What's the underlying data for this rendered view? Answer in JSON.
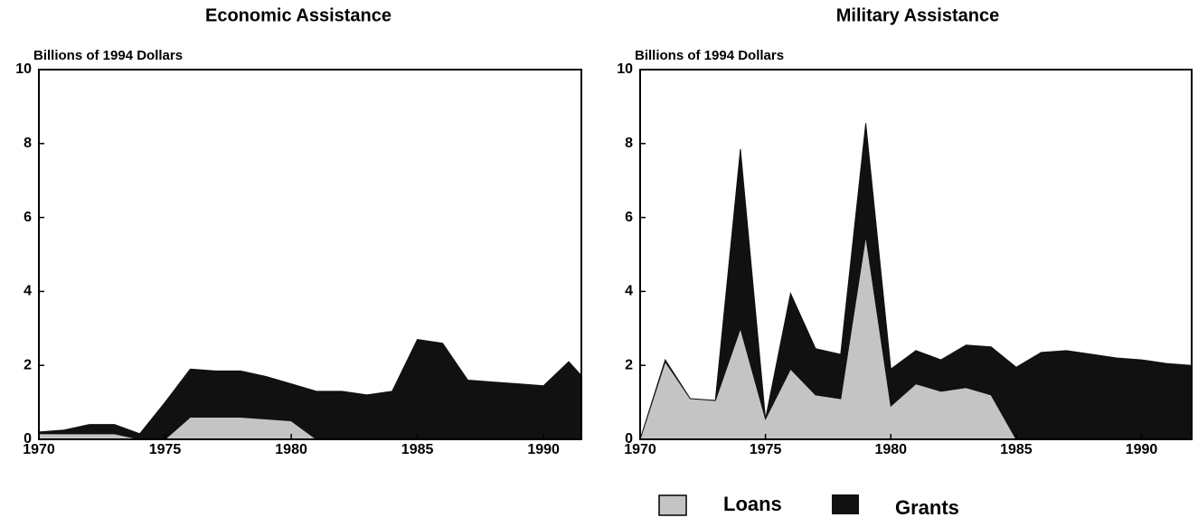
{
  "chart_data": [
    {
      "type": "stacked_area",
      "title": "Economic Assistance",
      "ylabel": "Billions of 1994 Dollars",
      "x": [
        1970,
        1971,
        1972,
        1973,
        1974,
        1975,
        1976,
        1977,
        1978,
        1979,
        1980,
        1981,
        1982,
        1983,
        1984,
        1985,
        1986,
        1987,
        1988,
        1989,
        1990,
        1991,
        1992
      ],
      "series": [
        {
          "name": "Loans",
          "color": "#c4c4c4",
          "values": [
            0.15,
            0.15,
            0.15,
            0.15,
            0,
            0,
            0.6,
            0.6,
            0.6,
            0.55,
            0.5,
            0,
            0,
            0,
            0,
            0,
            0,
            0,
            0,
            0,
            0,
            0,
            0
          ]
        },
        {
          "name": "Grants",
          "color": "#111111",
          "values": [
            0.05,
            0.1,
            0.25,
            0.25,
            0.15,
            1.0,
            1.3,
            1.25,
            1.25,
            1.15,
            1.0,
            1.3,
            1.3,
            1.2,
            1.3,
            2.7,
            2.6,
            1.6,
            1.55,
            1.5,
            1.45,
            2.1,
            1.35
          ]
        }
      ],
      "xlim": [
        1970,
        1991.5
      ],
      "xticks": [
        1970,
        1975,
        1980,
        1985,
        1990
      ],
      "ylim": [
        0,
        10
      ],
      "yticks": [
        0,
        2,
        4,
        6,
        8,
        10
      ]
    },
    {
      "type": "stacked_area",
      "title": "Military Assistance",
      "ylabel": "Billions of 1994 Dollars",
      "x": [
        1970,
        1971,
        1972,
        1973,
        1974,
        1975,
        1976,
        1977,
        1978,
        1979,
        1980,
        1981,
        1982,
        1983,
        1984,
        1985,
        1986,
        1987,
        1988,
        1989,
        1990,
        1991,
        1992
      ],
      "series": [
        {
          "name": "Loans",
          "color": "#c4c4c4",
          "values": [
            0,
            2.1,
            1.1,
            1.05,
            3.0,
            0.55,
            1.9,
            1.2,
            1.1,
            5.5,
            0.9,
            1.5,
            1.3,
            1.4,
            1.2,
            0,
            0,
            0,
            0,
            0,
            0,
            0,
            0
          ]
        },
        {
          "name": "Grants",
          "color": "#111111",
          "values": [
            0,
            0.05,
            0,
            0,
            4.85,
            0,
            2.05,
            1.25,
            1.2,
            3.05,
            1.0,
            0.9,
            0.85,
            1.15,
            1.3,
            1.95,
            2.35,
            2.4,
            2.3,
            2.2,
            2.15,
            2.05,
            2.0
          ]
        }
      ],
      "xlim": [
        1970,
        1992
      ],
      "xticks": [
        1970,
        1975,
        1980,
        1985,
        1990
      ],
      "ylim": [
        0,
        10
      ],
      "yticks": [
        0,
        2,
        4,
        6,
        8,
        10
      ]
    }
  ]
}
